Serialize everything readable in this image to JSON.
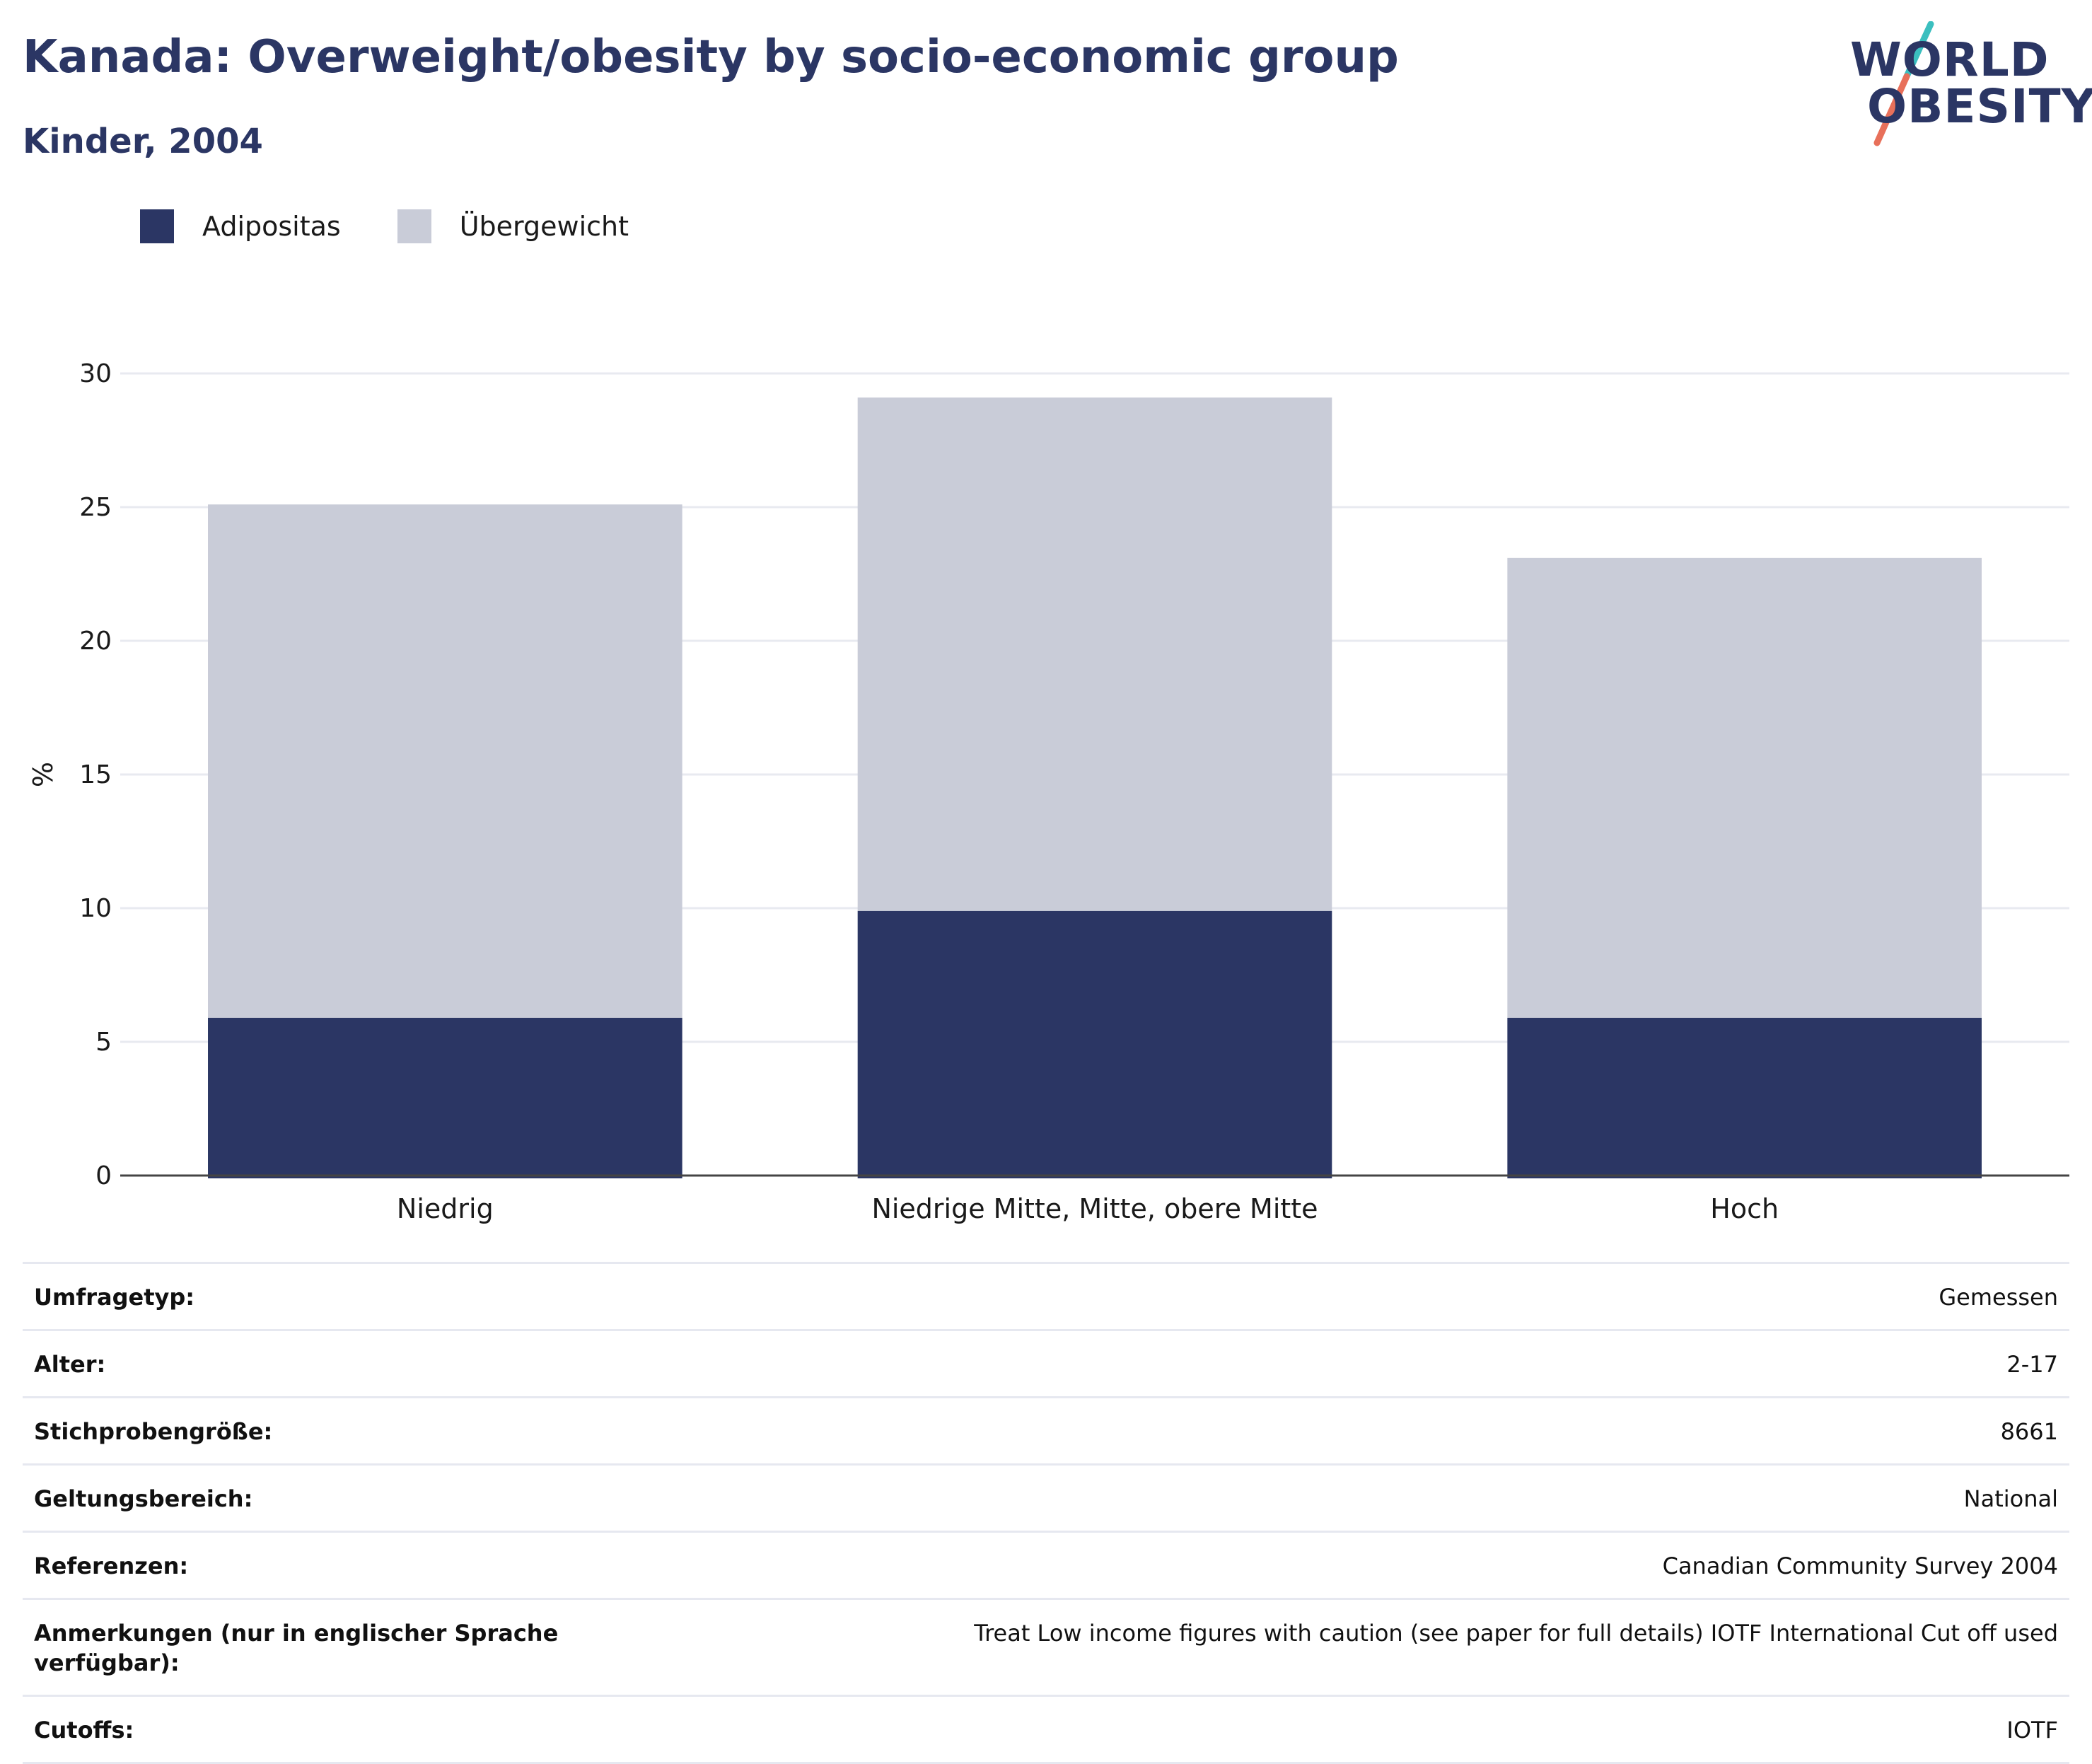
{
  "header": {
    "title": "Kanada: Overweight/obesity by socio-economic group",
    "subtitle": "Kinder, 2004"
  },
  "logo": {
    "line1": "WORLD",
    "line2": "OBESITY"
  },
  "colors": {
    "obesity": "#2b3664",
    "overweight": "#c9ccd8",
    "title": "#2b3664",
    "logo_teal": "#3bbfbf",
    "logo_coral": "#e8705a"
  },
  "chart_data": {
    "type": "bar",
    "stacked": true,
    "categories": [
      "Niedrig",
      "Niedrige Mitte, Mitte, obere Mitte",
      "Hoch"
    ],
    "series": [
      {
        "name": "Adipositas",
        "values": [
          5.9,
          9.9,
          5.9
        ],
        "color": "#2b3664"
      },
      {
        "name": "Übergewicht",
        "values": [
          19.2,
          19.2,
          17.2
        ],
        "color": "#c9ccd8"
      }
    ],
    "ylabel": "%",
    "xlabel": "",
    "ylim": [
      0,
      30
    ],
    "yticks": [
      0,
      5,
      10,
      15,
      20,
      25,
      30
    ],
    "grid": true,
    "legend_position": "top-left"
  },
  "meta": [
    {
      "key": "Umfragetyp:",
      "value": "Gemessen"
    },
    {
      "key": "Alter:",
      "value": "2-17"
    },
    {
      "key": "Stichprobengröße:",
      "value": "8661"
    },
    {
      "key": "Geltungsbereich:",
      "value": "National"
    },
    {
      "key": "Referenzen:",
      "value": "Canadian Community Survey 2004"
    },
    {
      "key": "Anmerkungen (nur in englischer Sprache verfügbar):",
      "value": "Treat Low income figures with caution (see paper for full details) IOTF International Cut off used"
    },
    {
      "key": "Cutoffs:",
      "value": "IOTF"
    }
  ]
}
